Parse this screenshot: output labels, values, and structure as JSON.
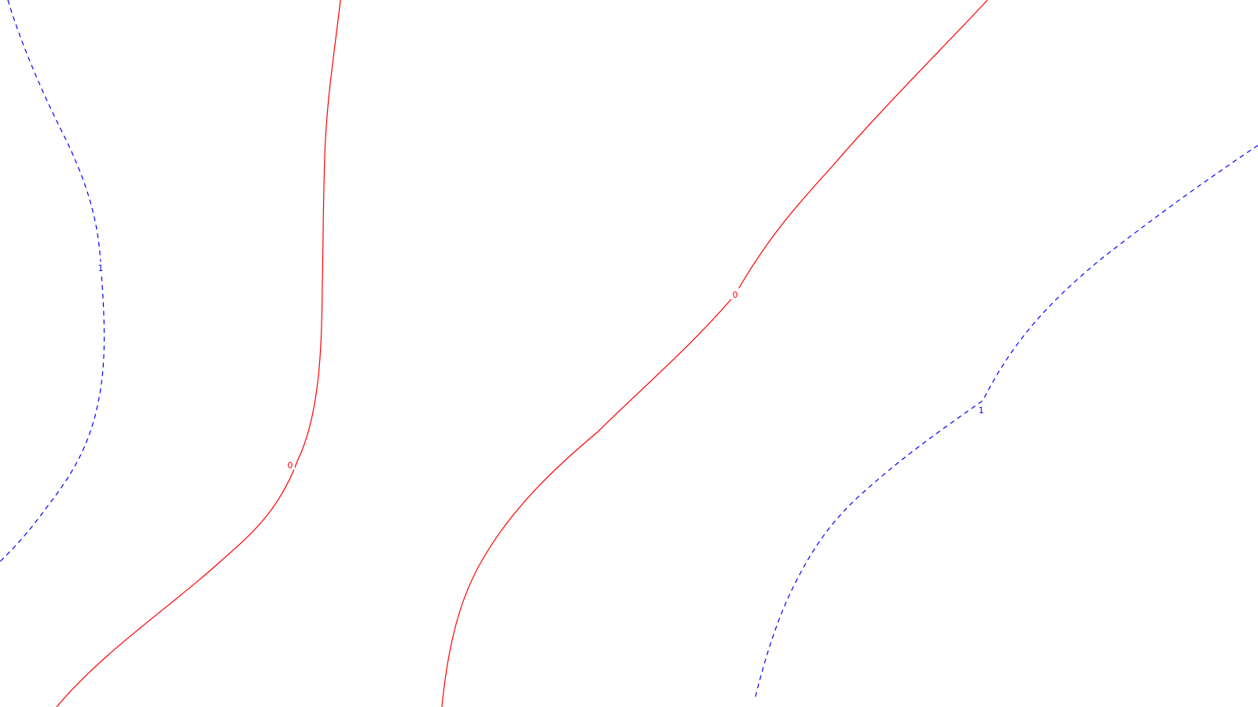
{
  "colors": {
    "background": "#ffffff",
    "zero_contour": "#ff0000",
    "one_contour": "#0000ff"
  },
  "contours": [
    {
      "level": "0",
      "label": "0",
      "style": "solid",
      "color": "#ff0000"
    },
    {
      "level": "0",
      "label": "0",
      "style": "solid",
      "color": "#ff0000"
    },
    {
      "level": "1",
      "label": "1",
      "style": "dashed",
      "color": "#0000ff"
    },
    {
      "level": "1",
      "label": "1",
      "style": "dashed",
      "color": "#0000ff"
    }
  ]
}
